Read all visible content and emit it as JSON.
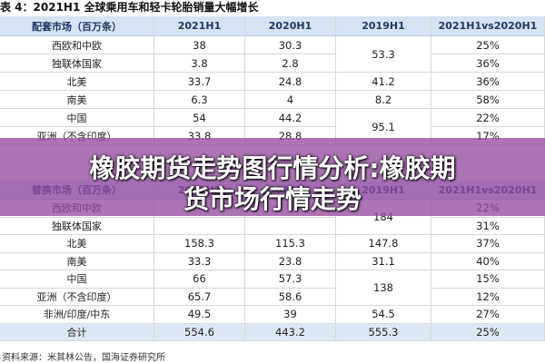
{
  "title": "表 4：2021H1 全球乘用车和轻卡轮胎销量大幅增长",
  "tables": [
    {
      "header": [
        "配套市场（百万条）",
        "2021H1",
        "2020H1",
        "2019H1",
        "2021H1vs2020H1"
      ],
      "rows": [
        {
          "label": "西欧和中欧",
          "h2021": "38",
          "h2020": "30.3",
          "h2019": "53.3",
          "change": "25%"
        },
        {
          "label": "独联体国家",
          "h2021": "3.8",
          "h2020": "2.8",
          "change": "36%"
        },
        {
          "label": "北美",
          "h2021": "33.7",
          "h2020": "24.8",
          "h2019": "41.2",
          "change": "36%"
        },
        {
          "label": "南美",
          "h2021": "6.3",
          "h2020": "4",
          "h2019": "8.2",
          "change": "58%"
        },
        {
          "label": "中国",
          "h2021": "54",
          "h2020": "44.2",
          "h2019": "95.1",
          "change": "22%"
        },
        {
          "label": "亚洲（不含印度）",
          "h2021": "33.8",
          "h2020": "28.8",
          "change": "17%"
        }
      ]
    },
    {
      "header": [
        "替换市场（百万条）",
        "2021H1",
        "2020H1",
        "2019H1",
        "2021H1vs2020H1"
      ],
      "rows": [
        {
          "label": "西欧和中欧",
          "h2019": "184",
          "change": "22%"
        },
        {
          "label": "独联体国家",
          "change": "31%"
        },
        {
          "label": "北美",
          "h2021": "158.3",
          "h2020": "115.3",
          "h2019": "147.8",
          "change": "37%"
        },
        {
          "label": "南美",
          "h2021": "33.3",
          "h2020": "23.8",
          "h2019": "31.1",
          "change": "40%"
        },
        {
          "label": "中国",
          "h2021": "66",
          "h2020": "57.3",
          "h2019": "138",
          "change": "15%"
        },
        {
          "label": "亚洲（不含印度）",
          "h2021": "65.7",
          "h2020": "58.6",
          "change": "12%"
        },
        {
          "label": "非洲/印度/中东",
          "h2021": "49.5",
          "h2020": "39",
          "h2019": "54.5",
          "change": "27%"
        },
        {
          "label": "合计",
          "h2021": "554.6",
          "h2020": "443.2",
          "h2019": "555.3",
          "change": "25%"
        }
      ]
    }
  ],
  "banner": {
    "lines": [
      "橡胶期货走势图行情分析:橡胶期",
      "货市场行情走势"
    ]
  },
  "source": "资料来源：米其林公告，国海证券研究所"
}
